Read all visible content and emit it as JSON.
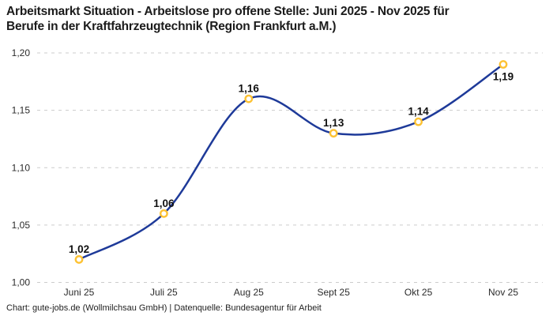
{
  "title": {
    "line1": "Arbeitsmarkt Situation - Arbeitslose pro offene Stelle: Juni 2025 - Nov 2025 für",
    "line2": "Berufe in der Kraftfahrzeugtechnik (Region Frankfurt a.M.)"
  },
  "footer": "Chart: gute-jobs.de (Wollmilchsau GmbH) | Datenquelle: Bundesagentur für Arbeit",
  "colors": {
    "line": "#1e3a99",
    "marker_ring": "#fdc233",
    "marker_fill": "#ffffff",
    "grid": "#cccccc",
    "axis_text": "#2b2b2b",
    "value_label": "#111111",
    "title_text": "#1b1b1b"
  },
  "chart_data": {
    "type": "line",
    "title": "Arbeitsmarkt Situation - Arbeitslose pro offene Stelle: Juni 2025 - Nov 2025 für Berufe in der Kraftfahrzeugtechnik (Region Frankfurt a.M.)",
    "categories": [
      "Juni 25",
      "Juli 25",
      "Aug 25",
      "Sept 25",
      "Okt 25",
      "Nov 25"
    ],
    "values": [
      1.02,
      1.06,
      1.16,
      1.13,
      1.14,
      1.19
    ],
    "value_labels": [
      "1,02",
      "1,06",
      "1,16",
      "1,13",
      "1,14",
      "1,19"
    ],
    "yticks": [
      1.0,
      1.05,
      1.1,
      1.15,
      1.2
    ],
    "ytick_labels": [
      "1,00",
      "1,05",
      "1,10",
      "1,15",
      "1,20"
    ],
    "ylim": [
      1.0,
      1.2
    ],
    "xlabel": "",
    "ylabel": "",
    "grid": "horizontal-dashed",
    "legend": "none",
    "line_smooth": true
  }
}
